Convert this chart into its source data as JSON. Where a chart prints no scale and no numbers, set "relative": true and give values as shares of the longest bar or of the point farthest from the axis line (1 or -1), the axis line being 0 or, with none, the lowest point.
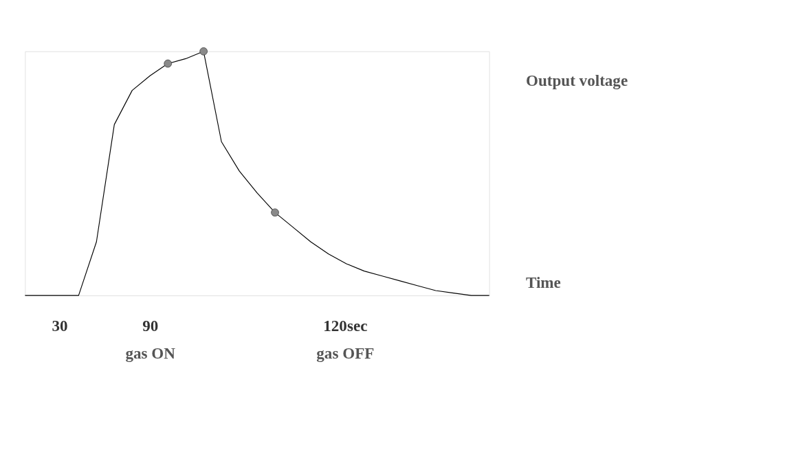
{
  "chart_data": {
    "type": "line",
    "relative": true,
    "xlabel": "Time",
    "ylabel": "Output voltage",
    "categories": [
      null,
      null,
      null,
      null,
      null,
      null,
      null,
      null,
      null,
      null,
      null,
      null,
      null,
      null,
      null,
      null,
      null,
      null,
      null,
      null,
      null,
      null,
      null,
      null,
      null,
      null,
      null
    ],
    "series": [
      {
        "color": "#000000",
        "line_style": "solid",
        "values": [
          0,
          0,
          0,
          0,
          0.22,
          0.7,
          0.84,
          0.9,
          0.95,
          0.97,
          1,
          0.63,
          0.51,
          0.42,
          0.34,
          0.28,
          0.22,
          0.17,
          0.13,
          0.1,
          0.08,
          0.06,
          0.04,
          0.02,
          0.01,
          0,
          0
        ]
      }
    ],
    "annotations": [
      "30",
      "90",
      "120sec",
      "gas ON",
      "gas OFF"
    ]
  }
}
